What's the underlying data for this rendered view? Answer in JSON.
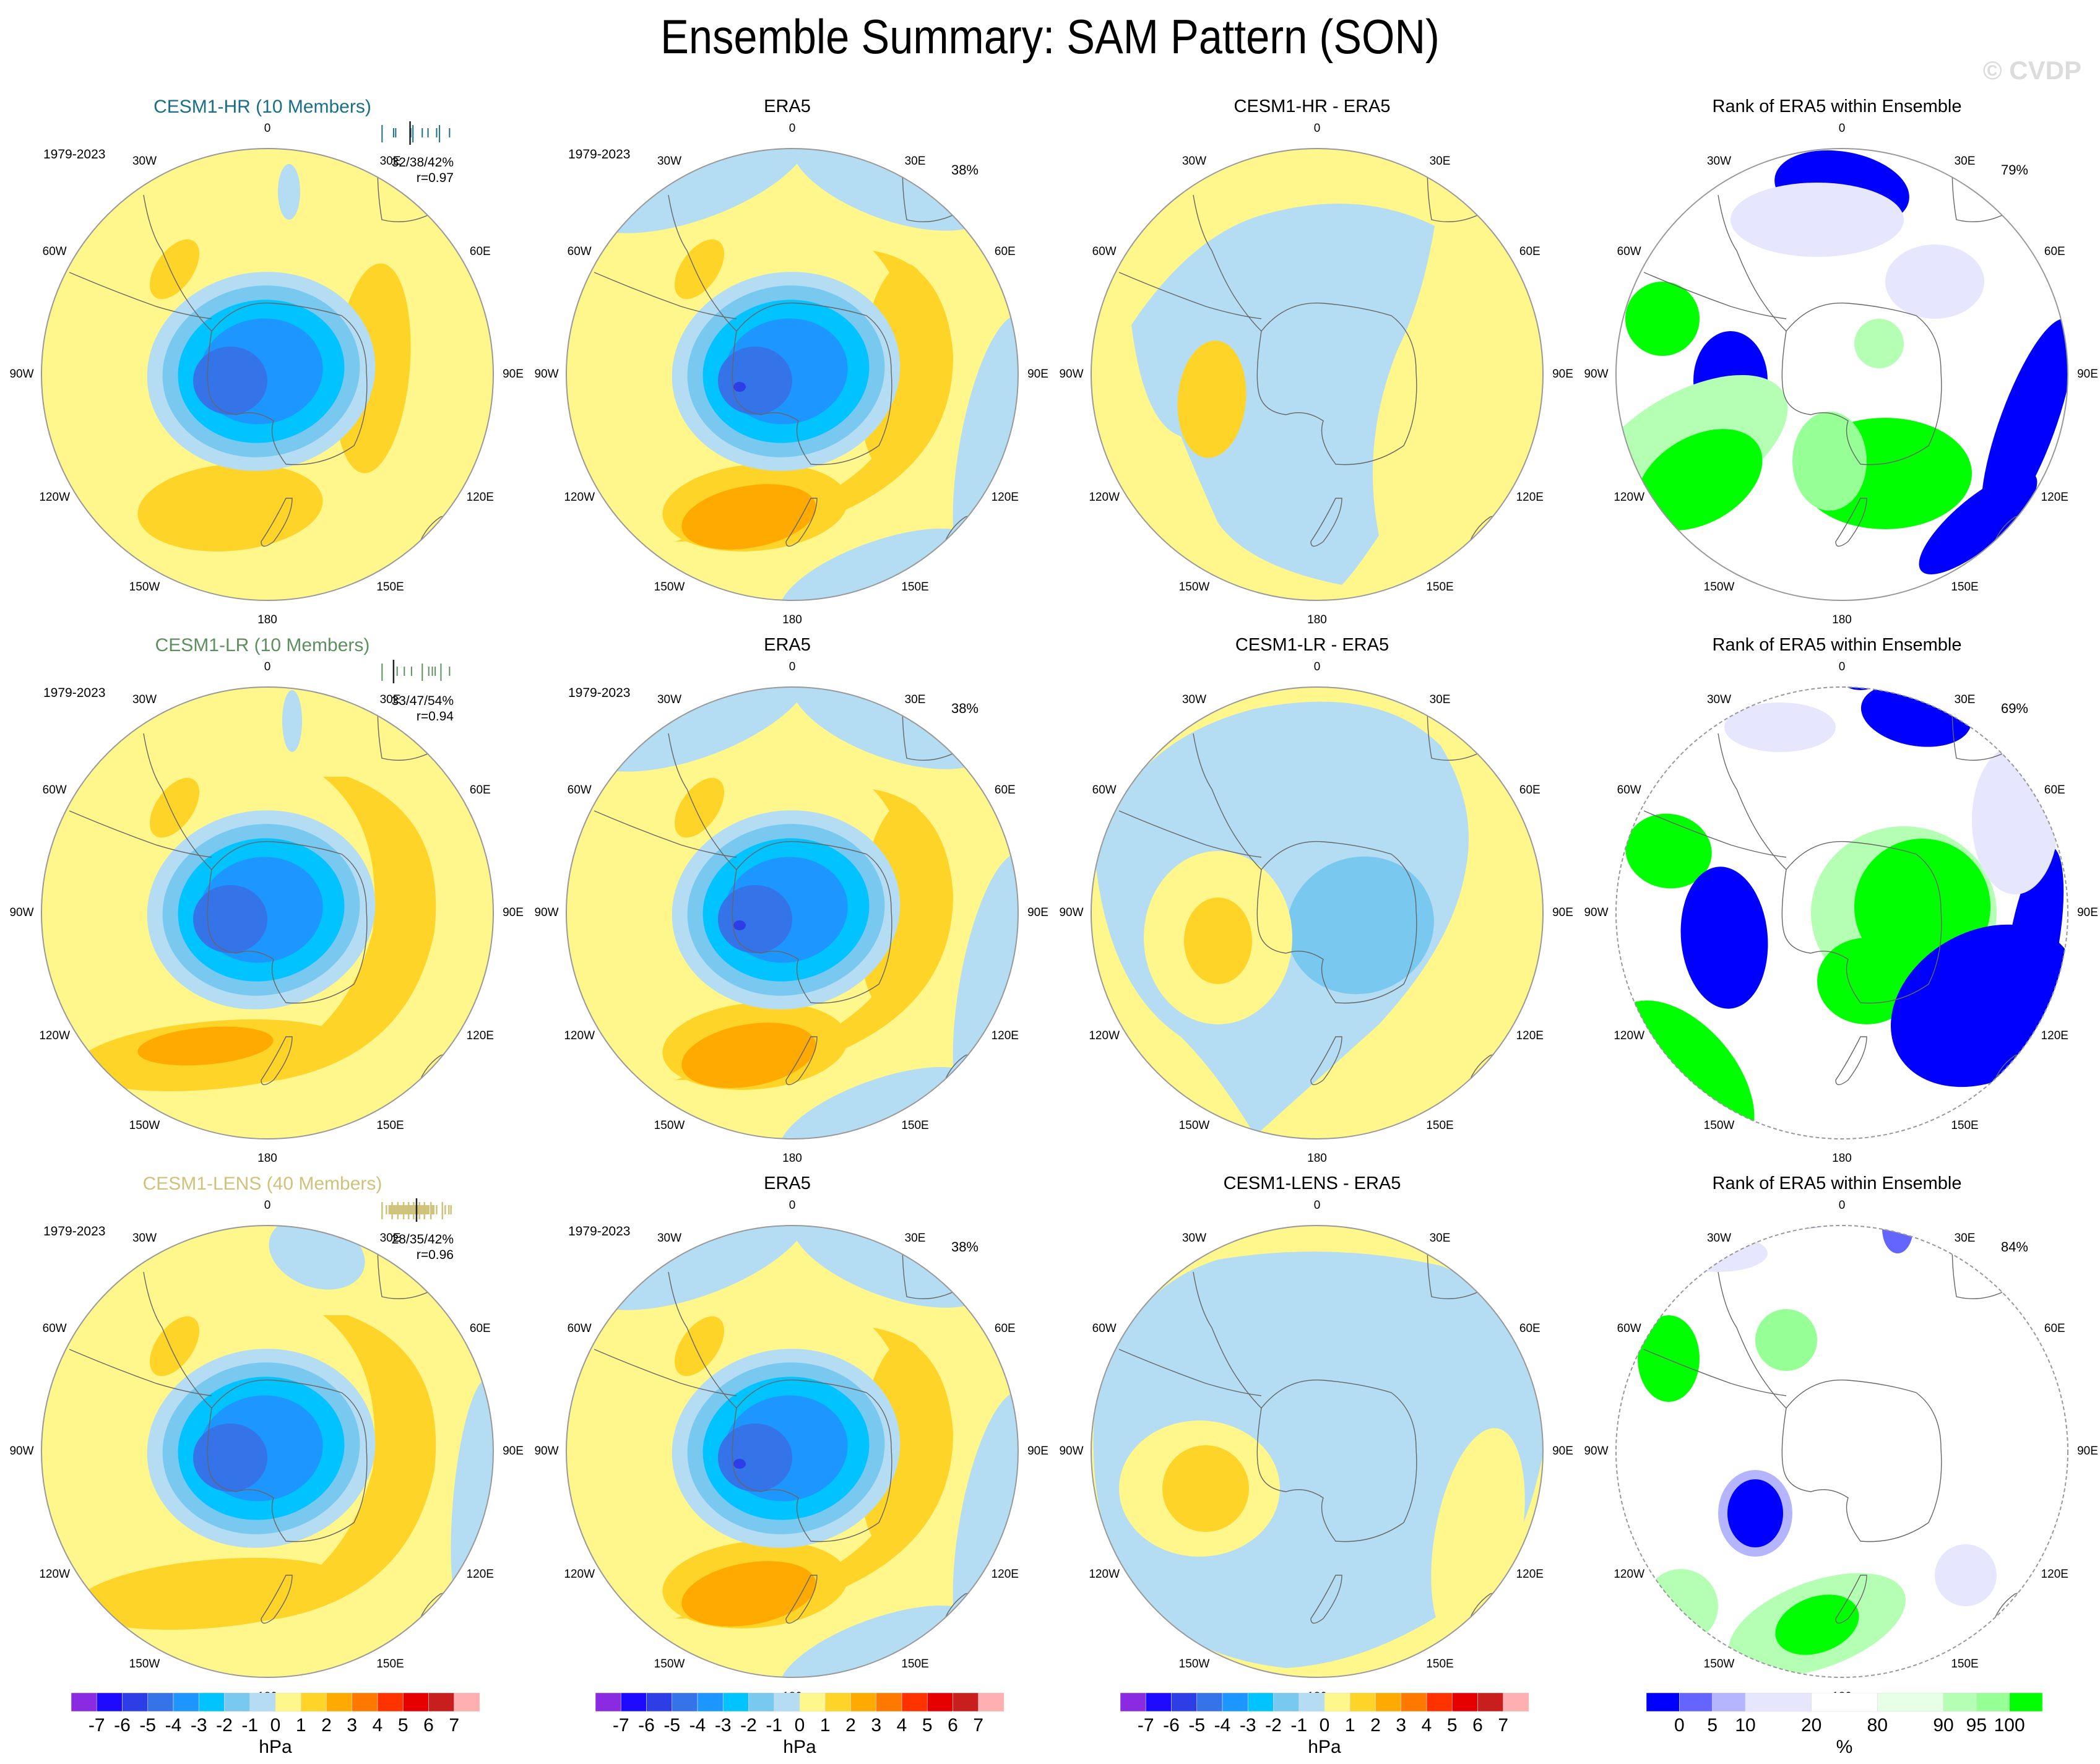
{
  "figure": {
    "title": "Ensemble Summary: SAM Pattern (SON)",
    "watermark": "© CVDP"
  },
  "map_labels": {
    "lon_ticks": [
      "0",
      "30E",
      "60E",
      "90E",
      "120E",
      "150E",
      "180",
      "150W",
      "120W",
      "90W",
      "60W",
      "30W"
    ],
    "projection": "south-polar-stereographic"
  },
  "rows": [
    {
      "model_title": "CESM1-HR (10 Members)",
      "model_color": "#1a6e8a",
      "period": "1979-2023",
      "model_stats": "32/38/42%",
      "model_r": "r=0.97",
      "strip_positions": [
        0.02,
        0.18,
        0.21,
        0.42,
        0.45,
        0.58,
        0.66,
        0.78,
        0.82,
        0.96
      ],
      "strip_obs": 0.41,
      "obs_title": "ERA5",
      "obs_period": "1979-2023",
      "obs_pct": "38%",
      "diff_title": "CESM1-HR - ERA5",
      "rank_title": "Rank of ERA5 within Ensemble",
      "rank_pct": "79%"
    },
    {
      "model_title": "CESM1-LR (10 Members)",
      "model_color": "#5f8f5f",
      "period": "1979-2023",
      "model_stats": "33/47/54%",
      "model_r": "r=0.94",
      "strip_positions": [
        0.02,
        0.23,
        0.33,
        0.43,
        0.58,
        0.67,
        0.72,
        0.76,
        0.84,
        0.96
      ],
      "strip_obs": 0.18,
      "obs_title": "ERA5",
      "obs_period": "1979-2023",
      "obs_pct": "38%",
      "diff_title": "CESM1-LR - ERA5",
      "rank_title": "Rank of ERA5 within Ensemble",
      "rank_pct": "69%"
    },
    {
      "model_title": "CESM1-LENS (40 Members)",
      "model_color": "#cfc27a",
      "period": "1979-2023",
      "model_stats": "28/35/42%",
      "model_r": "r=0.96",
      "strip_positions": [
        0.02,
        0.08,
        0.12,
        0.14,
        0.16,
        0.18,
        0.2,
        0.22,
        0.24,
        0.26,
        0.28,
        0.3,
        0.32,
        0.34,
        0.35,
        0.37,
        0.39,
        0.4,
        0.42,
        0.44,
        0.46,
        0.48,
        0.5,
        0.52,
        0.54,
        0.55,
        0.57,
        0.59,
        0.61,
        0.63,
        0.65,
        0.67,
        0.7,
        0.72,
        0.74,
        0.78,
        0.86,
        0.9,
        0.95,
        0.98
      ],
      "strip_obs": 0.5,
      "obs_title": "ERA5",
      "obs_period": "1979-2023",
      "obs_pct": "38%",
      "diff_title": "CESM1-LENS - ERA5",
      "rank_title": "Rank of ERA5 within Ensemble",
      "rank_pct": "84%"
    }
  ],
  "colorbars": {
    "hpa": {
      "unit": "hPa",
      "labels": [
        "-7",
        "-6",
        "-5",
        "-4",
        "-3",
        "-2",
        "-1",
        "0",
        "1",
        "2",
        "3",
        "4",
        "5",
        "6",
        "7"
      ],
      "colors": [
        "#8a2be2",
        "#1e0aff",
        "#2e3ee6",
        "#3473e8",
        "#1e96ff",
        "#00c3ff",
        "#78c8f0",
        "#b4dcf2",
        "#fff68c",
        "#ffd428",
        "#ffaa00",
        "#ff7800",
        "#ff3200",
        "#e60000",
        "#c81e1e",
        "#ffafaf"
      ]
    },
    "rank": {
      "unit": "%",
      "labels": [
        "0",
        "5",
        "10",
        "20",
        "80",
        "90",
        "95",
        "100"
      ],
      "bounds": [
        -5,
        0,
        5,
        10,
        20,
        80,
        90,
        95,
        100,
        105
      ],
      "colors": [
        "#0000ff",
        "#6464ff",
        "#b4b4ff",
        "#e6e6ff",
        "#ffffff",
        "#e6ffe6",
        "#b4ffb4",
        "#96ff96",
        "#00ff00"
      ]
    }
  },
  "chart_data": {
    "type": "heatmap",
    "title": "Ensemble Summary: SAM Pattern (SON)",
    "panel_grid": "3 rows x 4 columns",
    "columns": [
      "Model ensemble-mean SAM pattern",
      "ERA5 SAM pattern",
      "Model minus ERA5",
      "Rank of ERA5 within Ensemble"
    ],
    "rows": [
      "CESM1-HR (10 Members)",
      "CESM1-LR (10 Members)",
      "CESM1-LENS (40 Members)"
    ],
    "variable_unit": "hPa",
    "contour_levels": [
      -7,
      -6,
      -5,
      -4,
      -3,
      -2,
      -1,
      0,
      1,
      2,
      3,
      4,
      5,
      6,
      7
    ],
    "rank_levels_percent": [
      0,
      5,
      10,
      20,
      80,
      90,
      95,
      100
    ],
    "period": "1979-2023",
    "variance_explained": {
      "CESM1-HR": {
        "min": 32,
        "mean": 38,
        "max": 42,
        "pattern_corr": 0.97
      },
      "CESM1-LR": {
        "min": 33,
        "mean": 47,
        "max": 54,
        "pattern_corr": 0.94
      },
      "CESM1-LENS": {
        "min": 28,
        "mean": 35,
        "max": 42,
        "pattern_corr": 0.96
      },
      "ERA5": 38
    },
    "rank_area_within_20_80_percent": {
      "CESM1-HR": 79,
      "CESM1-LR": 69,
      "CESM1-LENS": 84
    }
  }
}
